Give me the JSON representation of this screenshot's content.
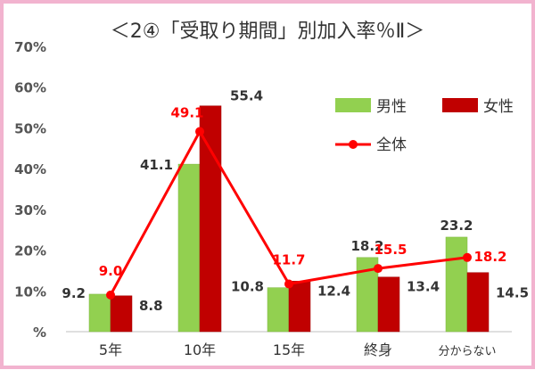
{
  "chart_data": {
    "type": "bar",
    "title": "＜2④「受取り期間」別加入率％Ⅱ＞",
    "categories": [
      "5年",
      "10年",
      "15年",
      "終身",
      "分からない"
    ],
    "series": [
      {
        "name": "男性",
        "kind": "bar",
        "color": "#92d050",
        "values": [
          9.2,
          41.1,
          10.8,
          18.2,
          23.2
        ]
      },
      {
        "name": "女性",
        "kind": "bar",
        "color": "#c00000",
        "values": [
          8.8,
          55.4,
          12.4,
          13.4,
          14.5
        ]
      },
      {
        "name": "全体",
        "kind": "line",
        "color": "#ff0000",
        "values": [
          9.0,
          49.1,
          11.7,
          15.5,
          18.2
        ]
      }
    ],
    "y_ticks": [
      "%",
      "10%",
      "20%",
      "30%",
      "40%",
      "50%",
      "60%",
      "70%"
    ],
    "ylim": [
      0,
      70
    ],
    "legend_position": "top-right",
    "grid": false
  }
}
